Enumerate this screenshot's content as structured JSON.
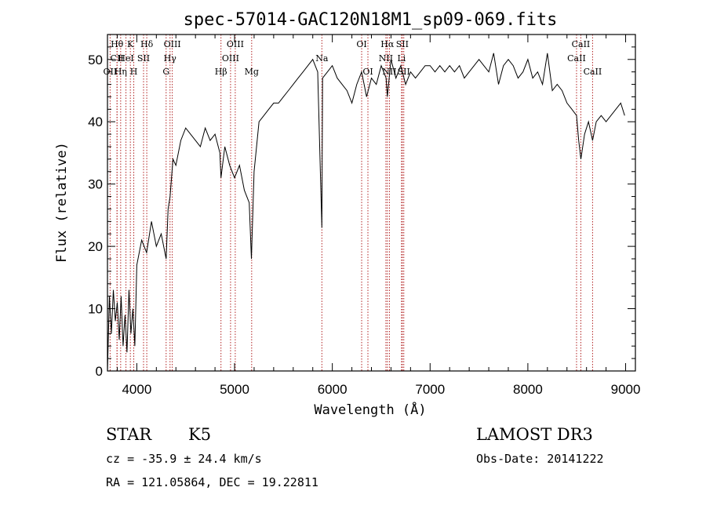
{
  "chart_data": {
    "type": "line",
    "title": "spec-57014-GAC120N18M1_sp09-069.fits",
    "xlabel": "Wavelength (Å)",
    "ylabel": "Flux (relative)",
    "xlim": [
      3700,
      9100
    ],
    "ylim": [
      0,
      54
    ],
    "xticks": [
      4000,
      5000,
      6000,
      7000,
      8000,
      9000
    ],
    "yticks": [
      0,
      10,
      20,
      30,
      40,
      50
    ],
    "series": [
      {
        "x": [
          3700,
          3720,
          3740,
          3760,
          3780,
          3800,
          3820,
          3840,
          3860,
          3880,
          3900,
          3920,
          3940,
          3960,
          3980,
          4000,
          4050,
          4100,
          4150,
          4200,
          4250,
          4300,
          4320,
          4340,
          4370,
          4400,
          4450,
          4500,
          4550,
          4600,
          4650,
          4700,
          4750,
          4800,
          4850,
          4861,
          4900,
          4950,
          5000,
          5050,
          5100,
          5150,
          5172,
          5200,
          5250,
          5300,
          5350,
          5400,
          5450,
          5500,
          5550,
          5600,
          5650,
          5700,
          5750,
          5800,
          5850,
          5893,
          5900,
          5950,
          6000,
          6050,
          6100,
          6150,
          6200,
          6250,
          6300,
          6350,
          6400,
          6450,
          6500,
          6550,
          6563,
          6600,
          6650,
          6700,
          6750,
          6800,
          6850,
          6900,
          6950,
          7000,
          7050,
          7100,
          7150,
          7200,
          7250,
          7300,
          7350,
          7400,
          7450,
          7500,
          7550,
          7600,
          7650,
          7700,
          7750,
          7800,
          7850,
          7900,
          7950,
          8000,
          8050,
          8100,
          8150,
          8200,
          8250,
          8300,
          8350,
          8400,
          8450,
          8498,
          8520,
          8542,
          8580,
          8620,
          8662,
          8700,
          8750,
          8800,
          8850,
          8900,
          8950,
          8990
        ],
        "values": [
          0,
          12,
          6,
          13,
          8,
          11,
          5,
          12,
          4,
          9,
          3,
          13,
          6,
          10,
          4,
          17,
          21,
          19,
          24,
          20,
          22,
          18,
          26,
          28,
          34,
          33,
          37,
          39,
          38,
          37,
          36,
          39,
          37,
          38,
          35,
          31,
          36,
          33,
          31,
          33,
          29,
          27,
          18,
          32,
          40,
          41,
          42,
          43,
          43,
          44,
          45,
          46,
          47,
          48,
          49,
          50,
          48,
          23,
          47,
          48,
          49,
          47,
          46,
          45,
          43,
          46,
          48,
          44,
          47,
          46,
          49,
          47,
          44,
          50,
          47,
          49,
          46,
          48,
          47,
          48,
          49,
          49,
          48,
          49,
          48,
          49,
          48,
          49,
          47,
          48,
          49,
          50,
          49,
          48,
          51,
          46,
          49,
          50,
          49,
          47,
          48,
          50,
          47,
          48,
          46,
          51,
          45,
          46,
          45,
          43,
          42,
          41,
          37,
          34,
          38,
          40,
          37,
          40,
          41,
          40,
          41,
          42,
          43,
          41
        ]
      }
    ],
    "spectral_lines": [
      {
        "label": "Hθ",
        "x": 3798,
        "row": 0
      },
      {
        "label": "CII",
        "x": 3798,
        "row": 1
      },
      {
        "label": "OII",
        "x": 3727,
        "row": 2
      },
      {
        "label": "K",
        "x": 3934,
        "row": 0
      },
      {
        "label": "HeI",
        "x": 3889,
        "row": 1
      },
      {
        "label": "Hη",
        "x": 3835,
        "row": 2
      },
      {
        "label": "H",
        "x": 3969,
        "row": 2
      },
      {
        "label": "Hδ",
        "x": 4102,
        "row": 0
      },
      {
        "label": "SII",
        "x": 4069,
        "row": 1
      },
      {
        "label": "OIII",
        "x": 4363,
        "row": 0
      },
      {
        "label": "Hγ",
        "x": 4340,
        "row": 1
      },
      {
        "label": "G",
        "x": 4300,
        "row": 2
      },
      {
        "label": "OIII",
        "x": 5007,
        "row": 0
      },
      {
        "label": "OIII",
        "x": 4959,
        "row": 1
      },
      {
        "label": "Hβ",
        "x": 4861,
        "row": 2
      },
      {
        "label": "Mg",
        "x": 5175,
        "row": 2
      },
      {
        "label": "Na",
        "x": 5893,
        "row": 1
      },
      {
        "label": "OI",
        "x": 6300,
        "row": 0
      },
      {
        "label": "OI",
        "x": 6364,
        "row": 2
      },
      {
        "label": "Hα",
        "x": 6563,
        "row": 0
      },
      {
        "label": "SII",
        "x": 6716,
        "row": 0
      },
      {
        "label": "NII",
        "x": 6548,
        "row": 1
      },
      {
        "label": "Li",
        "x": 6708,
        "row": 1
      },
      {
        "label": "NII",
        "x": 6584,
        "row": 2
      },
      {
        "label": "SII",
        "x": 6731,
        "row": 2
      },
      {
        "label": "CaII",
        "x": 8542,
        "row": 0
      },
      {
        "label": "CaII",
        "x": 8498,
        "row": 1
      },
      {
        "label": "CaII",
        "x": 8662,
        "row": 2
      }
    ]
  },
  "info": {
    "object_class": "STAR",
    "subclass": "K5",
    "survey": "LAMOST DR3",
    "redshift": "cz = -35.9 ± 24.4 km/s",
    "obs_date": "Obs-Date: 20141222",
    "coords": "RA = 121.05864, DEC =  19.22811"
  },
  "colors": {
    "line_marker": "#b22222",
    "spectrum": "#000000"
  }
}
